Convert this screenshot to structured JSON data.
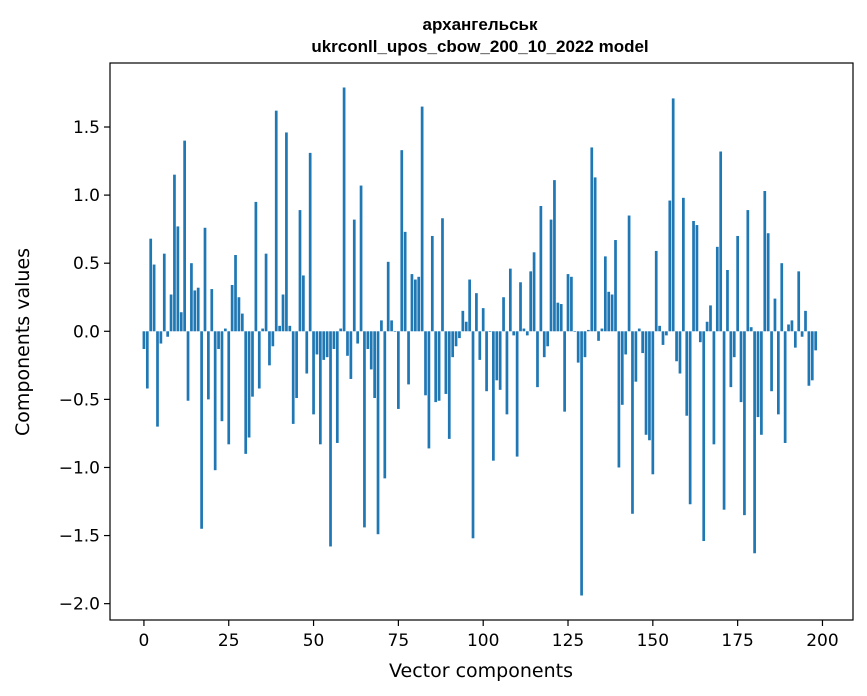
{
  "chart_data": {
    "type": "bar",
    "title": "архангельськ",
    "subtitle": "ukrconll_upos_cbow_200_10_2022 model",
    "xlabel": "Vector components",
    "ylabel": "Components values",
    "xlim": [
      -10,
      209
    ],
    "ylim": [
      -2.12,
      1.97
    ],
    "xticks": [
      0,
      25,
      50,
      75,
      100,
      125,
      150,
      175,
      200
    ],
    "yticks": [
      -2.0,
      -1.5,
      -1.0,
      -0.5,
      0.0,
      0.5,
      1.0,
      1.5
    ],
    "ytick_labels": [
      "−2.0",
      "−1.5",
      "−1.0",
      "−0.5",
      "0.0",
      "0.5",
      "1.0",
      "1.5"
    ],
    "bar_color": "#1f77b4",
    "grid": false,
    "values": [
      -0.13,
      -0.42,
      0.68,
      0.49,
      -0.7,
      -0.09,
      0.57,
      -0.04,
      0.27,
      1.15,
      0.77,
      0.14,
      1.4,
      -0.51,
      0.5,
      0.3,
      0.32,
      -1.45,
      0.76,
      -0.5,
      0.31,
      -1.02,
      -0.13,
      -0.66,
      0.02,
      -0.83,
      0.34,
      0.56,
      0.25,
      0.13,
      -0.9,
      -0.78,
      -0.48,
      0.95,
      -0.42,
      0.02,
      0.57,
      -0.25,
      -0.11,
      1.62,
      0.04,
      0.27,
      1.46,
      0.04,
      -0.68,
      -0.49,
      0.89,
      0.41,
      -0.31,
      1.31,
      -0.61,
      -0.17,
      -0.83,
      -0.21,
      -0.19,
      -1.58,
      -0.13,
      -0.82,
      0.02,
      1.79,
      -0.18,
      -0.35,
      0.82,
      -0.09,
      1.07,
      -1.44,
      -0.13,
      -0.28,
      -0.49,
      -1.49,
      0.08,
      -1.08,
      0.51,
      0.08,
      0.0,
      -0.57,
      1.33,
      0.73,
      -0.39,
      0.42,
      0.38,
      0.4,
      1.65,
      -0.47,
      -0.86,
      0.7,
      -0.52,
      -0.51,
      0.83,
      -0.46,
      -0.79,
      -0.19,
      -0.11,
      -0.05,
      0.15,
      0.07,
      0.38,
      -1.52,
      0.28,
      -0.21,
      0.17,
      -0.44,
      0.0,
      -0.95,
      -0.36,
      -0.43,
      0.25,
      -0.61,
      0.46,
      -0.03,
      -0.92,
      0.36,
      0.02,
      -0.03,
      0.44,
      0.58,
      -0.41,
      0.92,
      -0.19,
      -0.11,
      0.82,
      1.11,
      0.21,
      0.2,
      -0.59,
      0.42,
      0.4,
      0.0,
      -0.23,
      -1.94,
      -0.19,
      0.01,
      1.35,
      1.13,
      -0.07,
      0.02,
      0.55,
      0.29,
      0.27,
      0.67,
      -1.0,
      -0.54,
      -0.17,
      0.85,
      -1.34,
      -0.37,
      0.02,
      -0.16,
      -0.76,
      -0.8,
      -1.05,
      0.59,
      0.04,
      -0.1,
      -0.03,
      0.96,
      1.71,
      -0.22,
      -0.31,
      0.98,
      -0.62,
      -1.27,
      0.81,
      0.78,
      -0.08,
      -1.54,
      0.07,
      0.19,
      -0.83,
      0.62,
      1.32,
      -1.31,
      0.45,
      -0.41,
      -0.19,
      0.7,
      -0.52,
      -1.35,
      0.89,
      0.03,
      -1.63,
      -0.63,
      -0.76,
      1.03,
      0.72,
      -0.44,
      0.24,
      -0.61,
      0.5,
      -0.82,
      0.05,
      0.08,
      -0.12,
      0.44,
      -0.04,
      0.15,
      -0.4,
      -0.36,
      -0.14
    ]
  }
}
